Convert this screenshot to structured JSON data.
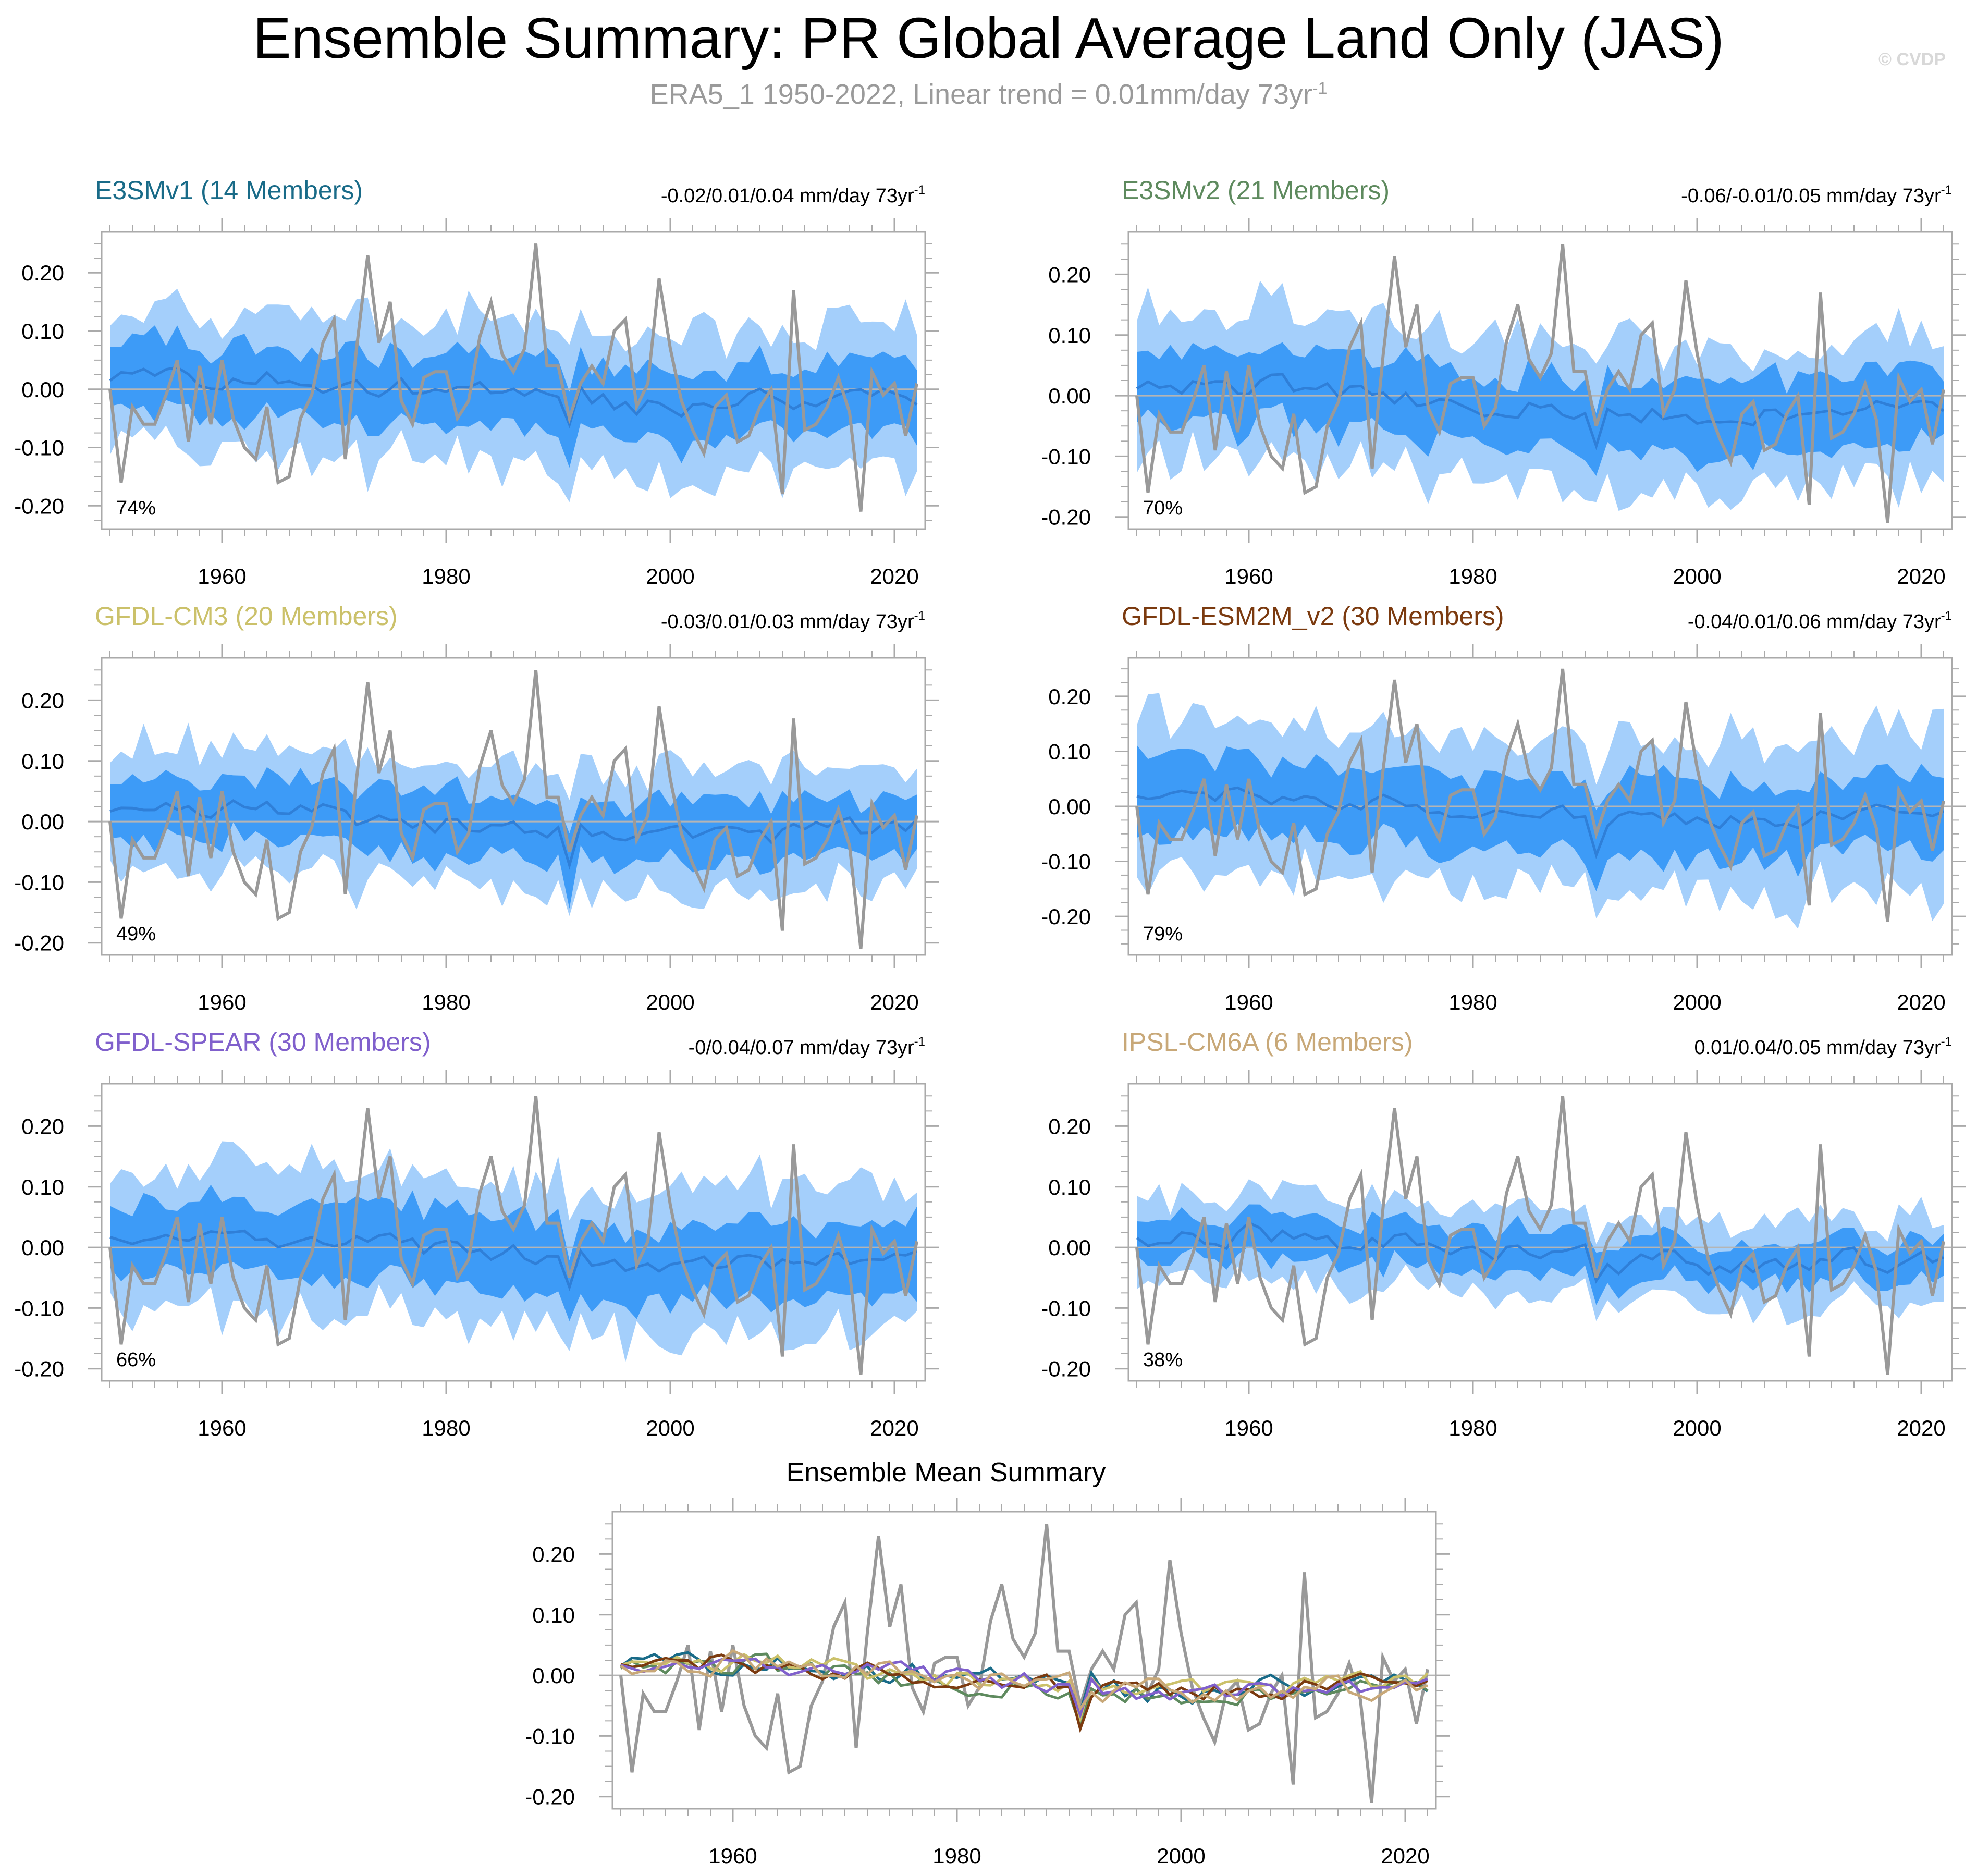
{
  "header": {
    "title": "Ensemble Summary: PR Global Average Land Only (JAS)",
    "subtitle_text": "ERA5_1 1950-2022, Linear trend = 0.01mm/day 73yr",
    "subtitle_sup": "-1",
    "watermark": "© CVDP"
  },
  "colors": {
    "band_outer": "#a4cffb",
    "band_inner": "#3d9bf7",
    "ens_mean": "#2f7fd8",
    "obs": "#999999",
    "zero_line": "#b5b5b5",
    "axis": "#aaaaaa"
  },
  "chart_data": {
    "type": "line",
    "years_start": 1950,
    "years_end": 2022,
    "x_ticks": [
      1960,
      1980,
      2000,
      2020
    ],
    "x_tick_labels": [
      "1960",
      "1980",
      "2000",
      "2020"
    ],
    "y_ticks": [
      -0.2,
      -0.1,
      0.0,
      0.1,
      0.2
    ],
    "y_tick_labels": [
      "-0.20",
      "-0.10",
      "0.00",
      "0.10",
      "0.20"
    ],
    "observed": {
      "name": "ERA5_1",
      "values": [
        0.0,
        -0.16,
        -0.03,
        -0.06,
        -0.06,
        -0.01,
        0.05,
        -0.09,
        0.04,
        -0.06,
        0.05,
        -0.05,
        -0.1,
        -0.12,
        -0.03,
        -0.16,
        -0.15,
        -0.05,
        -0.01,
        0.08,
        0.12,
        -0.12,
        0.07,
        0.23,
        0.08,
        0.15,
        -0.02,
        -0.06,
        0.02,
        0.03,
        0.03,
        -0.05,
        -0.02,
        0.09,
        0.15,
        0.06,
        0.03,
        0.07,
        0.25,
        0.04,
        0.04,
        -0.05,
        0.01,
        0.04,
        0.01,
        0.1,
        0.12,
        -0.03,
        0.01,
        0.19,
        0.07,
        -0.02,
        -0.07,
        -0.11,
        -0.03,
        -0.01,
        -0.09,
        -0.08,
        -0.03,
        0.0,
        -0.18,
        0.17,
        -0.07,
        -0.06,
        -0.03,
        0.02,
        -0.04,
        -0.21,
        0.03,
        -0.01,
        0.01,
        -0.08,
        0.01
      ]
    },
    "panels": [
      {
        "title": "E3SMv1 (14 Members)",
        "title_color": "#196b88",
        "trend": "-0.02/0.01/0.04 mm/day 73yr",
        "trend_sup": "-1",
        "percent": "74%",
        "ylim": [
          -0.24,
          0.27
        ],
        "seed": 11,
        "mean_bias": 0.0,
        "band_scale": 1.0,
        "amp": 0.035
      },
      {
        "title": "E3SMv2 (21 Members)",
        "title_color": "#5e8a5e",
        "trend": "-0.06/-0.01/0.05 mm/day 73yr",
        "trend_sup": "-1",
        "percent": "70%",
        "ylim": [
          -0.22,
          0.27
        ],
        "seed": 23,
        "mean_bias": -0.005,
        "band_scale": 1.0,
        "amp": 0.03
      },
      {
        "title": "GFDL-CM3 (20 Members)",
        "title_color": "#cbc16a",
        "trend": "-0.03/0.01/0.03 mm/day 73yr",
        "trend_sup": "-1",
        "percent": "49%",
        "ylim": [
          -0.22,
          0.27
        ],
        "seed": 37,
        "mean_bias": 0.0,
        "band_scale": 0.85,
        "amp": 0.03
      },
      {
        "title": "GFDL-ESM2M_v2 (30 Members)",
        "title_color": "#7b3a0f",
        "trend": "-0.04/0.01/0.06 mm/day 73yr",
        "trend_sup": "-1",
        "percent": "79%",
        "ylim": [
          -0.27,
          0.27
        ],
        "seed": 41,
        "mean_bias": 0.0,
        "band_scale": 1.15,
        "amp": 0.025
      },
      {
        "title": "GFDL-SPEAR (30 Members)",
        "title_color": "#8060cc",
        "trend": "-0/0.04/0.07 mm/day 73yr",
        "trend_sup": "-1",
        "percent": "66%",
        "ylim": [
          -0.22,
          0.27
        ],
        "seed": 53,
        "mean_bias": 0.0,
        "band_scale": 1.0,
        "amp": 0.03
      },
      {
        "title": "IPSL-CM6A (6 Members)",
        "title_color": "#c8a878",
        "trend": "0.01/0.04/0.05 mm/day 73yr",
        "trend_sup": "-1",
        "percent": "38%",
        "ylim": [
          -0.22,
          0.27
        ],
        "seed": 67,
        "mean_bias": 0.0,
        "band_scale": 0.6,
        "amp": 0.035
      }
    ],
    "summary": {
      "title": "Ensemble Mean Summary",
      "ylim": [
        -0.22,
        0.27
      ],
      "series_colors": [
        "#196b88",
        "#5e8a5e",
        "#cbc16a",
        "#7b3a0f",
        "#8060cc",
        "#c8a878"
      ]
    }
  }
}
